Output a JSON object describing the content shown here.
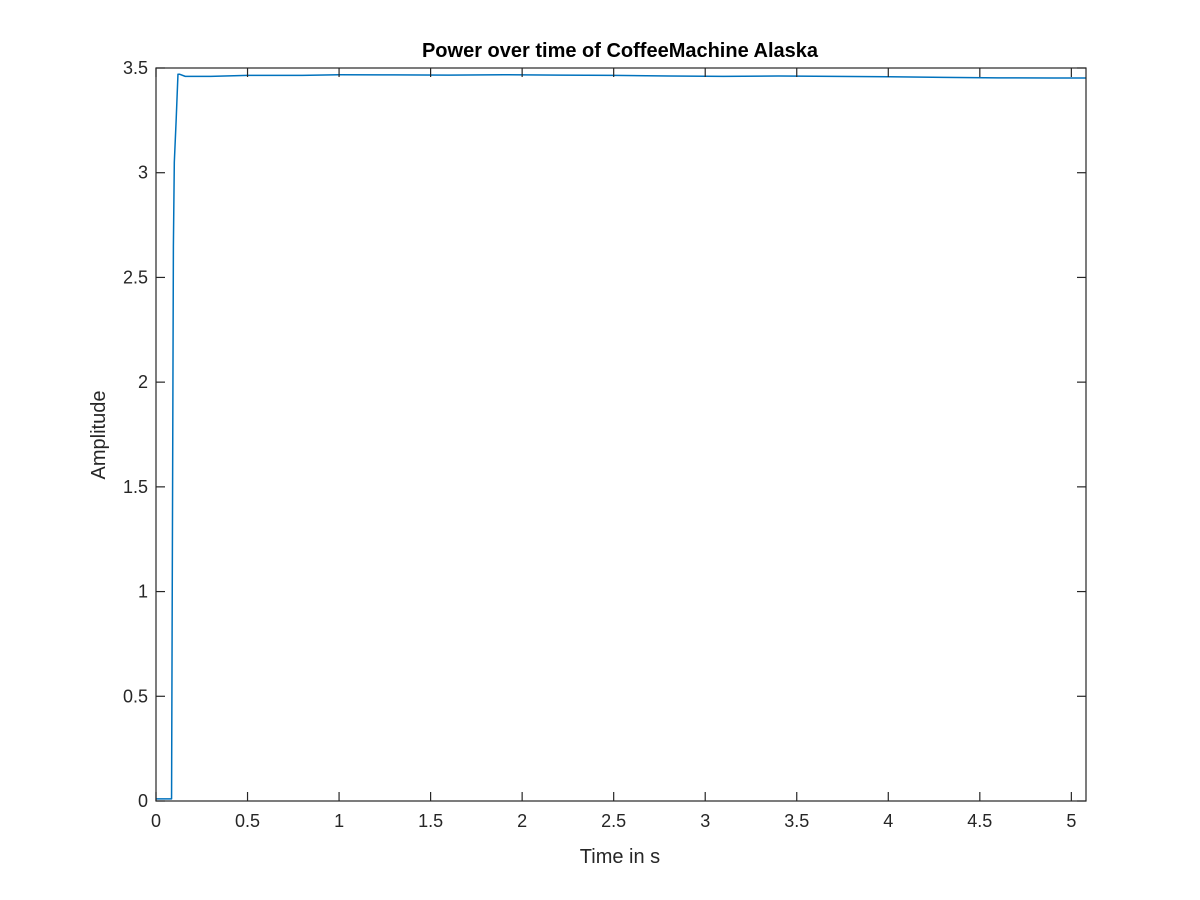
{
  "chart_data": {
    "type": "line",
    "title": "Power over time of CoffeeMachine Alaska",
    "xlabel": "Time in s",
    "ylabel": "Amplitude",
    "xlim": [
      0,
      5.08
    ],
    "ylim": [
      0,
      3.5
    ],
    "xticks": [
      0,
      0.5,
      1,
      1.5,
      2,
      2.5,
      3,
      3.5,
      4,
      4.5,
      5
    ],
    "xtick_labels": [
      "0",
      "0.5",
      "1",
      "1.5",
      "2",
      "2.5",
      "3",
      "3.5",
      "4",
      "4.5",
      "5"
    ],
    "yticks": [
      0,
      0.5,
      1,
      1.5,
      2,
      2.5,
      3,
      3.5
    ],
    "ytick_labels": [
      "0",
      "0.5",
      "1",
      "1.5",
      "2",
      "2.5",
      "3",
      "3.5"
    ],
    "grid": false,
    "box": true,
    "series": [
      {
        "color": "#0072BD",
        "x": [
          0,
          0.05,
          0.085,
          0.095,
          0.1,
          0.11,
          0.12,
          0.13,
          0.16,
          0.3,
          0.5,
          0.8,
          1.0,
          1.3,
          1.6,
          1.9,
          2.2,
          2.5,
          2.8,
          3.1,
          3.4,
          3.7,
          4.0,
          4.3,
          4.6,
          4.9,
          5.08
        ],
        "y": [
          0.01,
          0.01,
          0.01,
          2.65,
          3.05,
          3.25,
          3.47,
          3.47,
          3.46,
          3.46,
          3.465,
          3.465,
          3.468,
          3.467,
          3.466,
          3.468,
          3.466,
          3.465,
          3.462,
          3.46,
          3.462,
          3.46,
          3.458,
          3.455,
          3.453,
          3.452,
          3.452
        ]
      }
    ]
  }
}
